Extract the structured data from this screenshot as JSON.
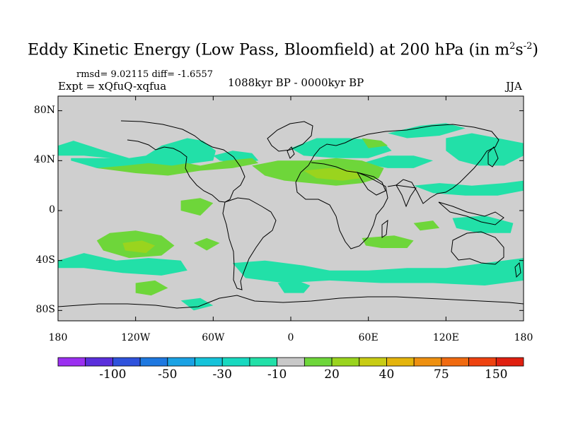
{
  "header": {
    "title_main": "Eddy Kinetic Energy (Low Pass, Bloomfield) at 200 hPa (in m",
    "title_sup1": "2",
    "title_mid": "s",
    "title_sup2": "-2",
    "title_end": ")",
    "stats": "rmsd= 9.02115 diff= -1.6557",
    "expt": "Expt = xQfuQ-xqfua",
    "period": "1088kyr BP - 0000kyr BP",
    "season": "JJA"
  },
  "chart_data": {
    "type": "map",
    "projection": "cylindrical-equidistant",
    "field": "Eddy kinetic energy difference (m2 s-2)",
    "lon_range": [
      -180,
      180
    ],
    "lat_range": [
      -90,
      90
    ],
    "lon_ticks": [
      -180,
      -120,
      -60,
      0,
      60,
      120,
      180
    ],
    "lon_tick_labels": [
      "180",
      "120W",
      "60W",
      "0",
      "60E",
      "120E",
      "180"
    ],
    "lat_ticks": [
      80,
      40,
      0,
      -40,
      -80
    ],
    "lat_tick_labels": [
      "80N",
      "40N",
      "0",
      "40S",
      "80S"
    ],
    "colorbar": {
      "colors": [
        "#9b30f0",
        "#5b2fdc",
        "#2f52dc",
        "#1e78e0",
        "#1aa2e4",
        "#15c3da",
        "#18d9c0",
        "#22e0a8",
        "#c8c8c8",
        "#6ed63a",
        "#9ad41e",
        "#c8cc14",
        "#e4b40c",
        "#ee9010",
        "#f06a10",
        "#ee4210",
        "#e02010"
      ],
      "labels": [
        "-100",
        "-50",
        "-30",
        "-10",
        "20",
        "40",
        "75",
        "150"
      ]
    },
    "regions": [
      {
        "level": "-10",
        "color": "#22e0a8",
        "polygon": [
          [
            -180,
            52
          ],
          [
            -168,
            56
          ],
          [
            -150,
            50
          ],
          [
            -138,
            46
          ],
          [
            -125,
            42
          ],
          [
            -112,
            44
          ],
          [
            -100,
            52
          ],
          [
            -80,
            58
          ],
          [
            -68,
            56
          ],
          [
            -58,
            48
          ],
          [
            -60,
            40
          ],
          [
            -75,
            38
          ],
          [
            -95,
            34
          ],
          [
            -120,
            36
          ],
          [
            -140,
            42
          ],
          [
            -160,
            44
          ],
          [
            -180,
            44
          ]
        ]
      },
      {
        "level": "-10",
        "color": "#22e0a8",
        "polygon": [
          [
            -170,
            40
          ],
          [
            -150,
            34
          ],
          [
            -130,
            32
          ],
          [
            -115,
            34
          ],
          [
            -112,
            40
          ],
          [
            -130,
            42
          ],
          [
            -150,
            42
          ],
          [
            -170,
            42
          ]
        ]
      },
      {
        "level": "-10",
        "color": "#22e0a8",
        "polygon": [
          [
            -60,
            44
          ],
          [
            -45,
            48
          ],
          [
            -30,
            46
          ],
          [
            -25,
            40
          ],
          [
            -40,
            38
          ],
          [
            -55,
            40
          ]
        ]
      },
      {
        "level": "-10",
        "color": "#22e0a8",
        "polygon": [
          [
            0,
            50
          ],
          [
            20,
            58
          ],
          [
            45,
            58
          ],
          [
            70,
            56
          ],
          [
            78,
            48
          ],
          [
            60,
            42
          ],
          [
            35,
            42
          ],
          [
            10,
            44
          ]
        ]
      },
      {
        "level": "-10",
        "color": "#22e0a8",
        "polygon": [
          [
            55,
            38
          ],
          [
            75,
            34
          ],
          [
            95,
            34
          ],
          [
            110,
            40
          ],
          [
            95,
            44
          ],
          [
            75,
            44
          ]
        ]
      },
      {
        "level": "-10",
        "color": "#22e0a8",
        "polygon": [
          [
            120,
            58
          ],
          [
            140,
            62
          ],
          [
            160,
            58
          ],
          [
            180,
            54
          ],
          [
            180,
            44
          ],
          [
            165,
            36
          ],
          [
            145,
            36
          ],
          [
            130,
            40
          ],
          [
            120,
            48
          ]
        ]
      },
      {
        "level": "-10",
        "color": "#22e0a8",
        "polygon": [
          [
            95,
            20
          ],
          [
            115,
            22
          ],
          [
            140,
            20
          ],
          [
            165,
            22
          ],
          [
            180,
            24
          ],
          [
            180,
            16
          ],
          [
            160,
            12
          ],
          [
            135,
            12
          ],
          [
            110,
            14
          ]
        ]
      },
      {
        "level": "-10",
        "color": "#22e0a8",
        "polygon": [
          [
            75,
            62
          ],
          [
            100,
            68
          ],
          [
            120,
            70
          ],
          [
            135,
            66
          ],
          [
            115,
            60
          ],
          [
            90,
            58
          ]
        ]
      },
      {
        "level": "-10",
        "color": "#22e0a8",
        "polygon": [
          [
            -180,
            -40
          ],
          [
            -160,
            -34
          ],
          [
            -135,
            -40
          ],
          [
            -110,
            -38
          ],
          [
            -85,
            -40
          ],
          [
            -80,
            -48
          ],
          [
            -100,
            -52
          ],
          [
            -130,
            -50
          ],
          [
            -160,
            -46
          ],
          [
            -180,
            -46
          ]
        ]
      },
      {
        "level": "-10",
        "color": "#22e0a8",
        "polygon": [
          [
            -45,
            -42
          ],
          [
            -20,
            -40
          ],
          [
            10,
            -44
          ],
          [
            30,
            -48
          ],
          [
            60,
            -48
          ],
          [
            90,
            -46
          ],
          [
            120,
            -46
          ],
          [
            150,
            -42
          ],
          [
            180,
            -38
          ],
          [
            180,
            -56
          ],
          [
            150,
            -60
          ],
          [
            110,
            -58
          ],
          [
            70,
            -58
          ],
          [
            30,
            -56
          ],
          [
            -5,
            -58
          ],
          [
            -35,
            -54
          ]
        ]
      },
      {
        "level": "-10",
        "color": "#22e0a8",
        "polygon": [
          [
            -10,
            -58
          ],
          [
            5,
            -56
          ],
          [
            15,
            -60
          ],
          [
            10,
            -66
          ],
          [
            -5,
            -66
          ]
        ]
      },
      {
        "level": "-10",
        "color": "#22e0a8",
        "polygon": [
          [
            -85,
            -72
          ],
          [
            -70,
            -70
          ],
          [
            -60,
            -76
          ],
          [
            -75,
            -80
          ]
        ]
      },
      {
        "level": "-10",
        "color": "#22e0a8",
        "polygon": [
          [
            125,
            -6
          ],
          [
            150,
            -4
          ],
          [
            172,
            -10
          ],
          [
            170,
            -18
          ],
          [
            145,
            -18
          ],
          [
            128,
            -14
          ]
        ]
      },
      {
        "level": "20",
        "color": "#6ed63a",
        "polygon": [
          [
            -150,
            34
          ],
          [
            -128,
            36
          ],
          [
            -110,
            38
          ],
          [
            -92,
            36
          ],
          [
            -80,
            38
          ],
          [
            -70,
            36
          ],
          [
            -50,
            40
          ],
          [
            -30,
            42
          ],
          [
            -25,
            38
          ],
          [
            -45,
            34
          ],
          [
            -70,
            32
          ],
          [
            -95,
            28
          ],
          [
            -120,
            30
          ]
        ]
      },
      {
        "level": "20",
        "color": "#6ed63a",
        "polygon": [
          [
            -30,
            36
          ],
          [
            -10,
            40
          ],
          [
            15,
            40
          ],
          [
            35,
            42
          ],
          [
            55,
            40
          ],
          [
            72,
            34
          ],
          [
            68,
            26
          ],
          [
            55,
            22
          ],
          [
            35,
            20
          ],
          [
            15,
            22
          ],
          [
            -5,
            24
          ],
          [
            -20,
            28
          ]
        ]
      },
      {
        "level": "20",
        "color": "#6ed63a",
        "polygon": [
          [
            -85,
            8
          ],
          [
            -70,
            10
          ],
          [
            -60,
            6
          ],
          [
            -70,
            -4
          ],
          [
            -85,
            0
          ]
        ]
      },
      {
        "level": "20",
        "color": "#6ed63a",
        "polygon": [
          [
            -140,
            -18
          ],
          [
            -120,
            -16
          ],
          [
            -100,
            -20
          ],
          [
            -90,
            -28
          ],
          [
            -100,
            -36
          ],
          [
            -125,
            -38
          ],
          [
            -145,
            -32
          ],
          [
            -150,
            -24
          ]
        ]
      },
      {
        "level": "20",
        "color": "#6ed63a",
        "polygon": [
          [
            -120,
            -58
          ],
          [
            -105,
            -56
          ],
          [
            -95,
            -62
          ],
          [
            -108,
            -68
          ],
          [
            -120,
            -66
          ]
        ]
      },
      {
        "level": "20",
        "color": "#6ed63a",
        "polygon": [
          [
            55,
            -22
          ],
          [
            80,
            -20
          ],
          [
            95,
            -24
          ],
          [
            90,
            -30
          ],
          [
            70,
            -30
          ],
          [
            58,
            -28
          ]
        ]
      },
      {
        "level": "20",
        "color": "#6ed63a",
        "polygon": [
          [
            95,
            -10
          ],
          [
            110,
            -8
          ],
          [
            115,
            -14
          ],
          [
            100,
            -16
          ]
        ]
      },
      {
        "level": "20",
        "color": "#6ed63a",
        "polygon": [
          [
            -75,
            -26
          ],
          [
            -65,
            -22
          ],
          [
            -55,
            -26
          ],
          [
            -65,
            -32
          ]
        ]
      },
      {
        "level": "20",
        "color": "#6ed63a",
        "polygon": [
          [
            55,
            58
          ],
          [
            70,
            56
          ],
          [
            75,
            52
          ],
          [
            60,
            50
          ]
        ]
      },
      {
        "level": "40",
        "color": "#9ad41e",
        "polygon": [
          [
            -130,
            -26
          ],
          [
            -115,
            -24
          ],
          [
            -105,
            -28
          ],
          [
            -112,
            -34
          ],
          [
            -128,
            -32
          ]
        ]
      },
      {
        "level": "40",
        "color": "#9ad41e",
        "polygon": [
          [
            10,
            32
          ],
          [
            30,
            34
          ],
          [
            50,
            32
          ],
          [
            55,
            26
          ],
          [
            40,
            24
          ],
          [
            20,
            26
          ]
        ]
      }
    ]
  }
}
